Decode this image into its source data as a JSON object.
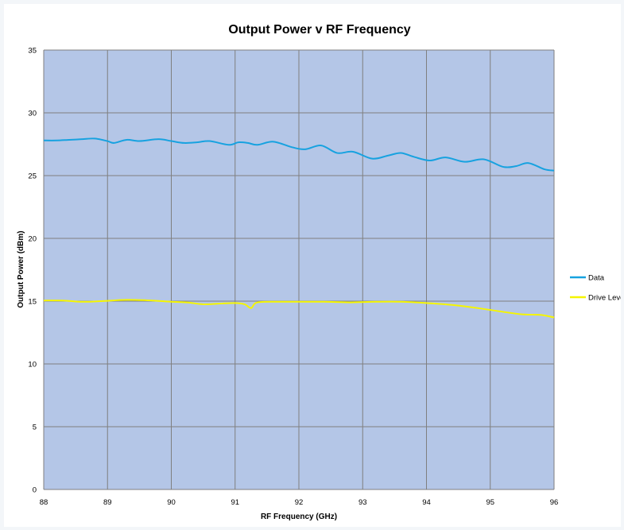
{
  "chart_data": {
    "type": "line",
    "title": "Output Power v RF Frequency",
    "xlabel": "RF Frequency (GHz)",
    "ylabel": "Output Power (dBm)",
    "xlim": [
      88,
      96
    ],
    "ylim": [
      0,
      35
    ],
    "xticks": [
      "88",
      "89",
      "90",
      "91",
      "92",
      "93",
      "94",
      "95",
      "96"
    ],
    "yticks": [
      "0",
      "5",
      "10",
      "15",
      "20",
      "25",
      "30",
      "35"
    ],
    "grid": true,
    "legend_position": "right",
    "plot_background": "#b4c6e7",
    "series": [
      {
        "name": "Data",
        "color": "#17a2e0",
        "points": [
          [
            88.0,
            27.8
          ],
          [
            88.2,
            27.8
          ],
          [
            88.4,
            27.85
          ],
          [
            88.6,
            27.9
          ],
          [
            88.8,
            27.95
          ],
          [
            89.0,
            27.75
          ],
          [
            89.1,
            27.6
          ],
          [
            89.3,
            27.85
          ],
          [
            89.5,
            27.75
          ],
          [
            89.8,
            27.9
          ],
          [
            90.0,
            27.75
          ],
          [
            90.2,
            27.6
          ],
          [
            90.4,
            27.65
          ],
          [
            90.6,
            27.75
          ],
          [
            90.9,
            27.45
          ],
          [
            91.05,
            27.65
          ],
          [
            91.2,
            27.6
          ],
          [
            91.35,
            27.45
          ],
          [
            91.6,
            27.7
          ],
          [
            91.9,
            27.25
          ],
          [
            92.1,
            27.1
          ],
          [
            92.35,
            27.4
          ],
          [
            92.6,
            26.8
          ],
          [
            92.85,
            26.9
          ],
          [
            93.15,
            26.35
          ],
          [
            93.4,
            26.6
          ],
          [
            93.6,
            26.8
          ],
          [
            93.8,
            26.5
          ],
          [
            94.05,
            26.2
          ],
          [
            94.3,
            26.45
          ],
          [
            94.6,
            26.1
          ],
          [
            94.9,
            26.3
          ],
          [
            95.2,
            25.7
          ],
          [
            95.4,
            25.75
          ],
          [
            95.6,
            26.0
          ],
          [
            95.85,
            25.5
          ],
          [
            96.0,
            25.4
          ]
        ]
      },
      {
        "name": "Drive Level",
        "color": "#f5f500",
        "points": [
          [
            88.0,
            15.05
          ],
          [
            88.3,
            15.05
          ],
          [
            88.6,
            14.95
          ],
          [
            88.9,
            15.0
          ],
          [
            89.3,
            15.1
          ],
          [
            89.7,
            15.05
          ],
          [
            90.0,
            14.95
          ],
          [
            90.25,
            14.9
          ],
          [
            90.5,
            14.75
          ],
          [
            90.75,
            14.8
          ],
          [
            91.0,
            14.85
          ],
          [
            91.15,
            14.75
          ],
          [
            91.25,
            14.45
          ],
          [
            91.35,
            14.9
          ],
          [
            91.7,
            14.95
          ],
          [
            92.0,
            14.95
          ],
          [
            92.4,
            14.95
          ],
          [
            92.8,
            14.9
          ],
          [
            93.2,
            14.95
          ],
          [
            93.6,
            14.95
          ],
          [
            94.0,
            14.85
          ],
          [
            94.4,
            14.7
          ],
          [
            94.8,
            14.45
          ],
          [
            95.2,
            14.15
          ],
          [
            95.5,
            13.95
          ],
          [
            95.8,
            13.9
          ],
          [
            96.0,
            13.7
          ]
        ]
      }
    ]
  }
}
